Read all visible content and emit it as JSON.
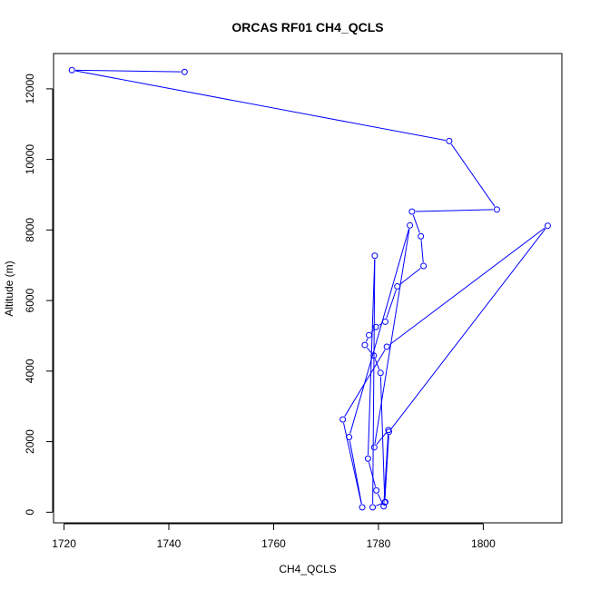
{
  "chart_data": {
    "type": "line",
    "title": "ORCAS RF01 CH4_QCLS",
    "xlabel": "CH4_QCLS",
    "ylabel": "Altitude (m)",
    "xlim": [
      1718,
      1815
    ],
    "ylim": [
      -300,
      13000
    ],
    "x_ticks": [
      1720,
      1740,
      1760,
      1780,
      1800
    ],
    "y_ticks": [
      0,
      2000,
      4000,
      6000,
      8000,
      10000,
      12000
    ],
    "grid": false,
    "legend": "none",
    "series": [
      {
        "color": "#0000ff",
        "marker": "open-circle",
        "points": [
          {
            "x": 1743.0,
            "y": 12480
          },
          {
            "x": 1721.5,
            "y": 12530
          },
          {
            "x": 1793.5,
            "y": 10520
          },
          {
            "x": 1802.6,
            "y": 8580
          },
          {
            "x": 1786.4,
            "y": 8520
          },
          {
            "x": 1788.1,
            "y": 7820
          },
          {
            "x": 1788.6,
            "y": 6980
          },
          {
            "x": 1783.6,
            "y": 6400
          },
          {
            "x": 1781.3,
            "y": 5400
          },
          {
            "x": 1779.5,
            "y": 5250
          },
          {
            "x": 1778.2,
            "y": 5020
          },
          {
            "x": 1777.4,
            "y": 4740
          },
          {
            "x": 1779.1,
            "y": 4440
          },
          {
            "x": 1780.4,
            "y": 3950
          },
          {
            "x": 1781.2,
            "y": 280
          },
          {
            "x": 1782.0,
            "y": 2280
          },
          {
            "x": 1812.3,
            "y": 8120
          },
          {
            "x": 1781.6,
            "y": 4690
          },
          {
            "x": 1773.2,
            "y": 2630
          },
          {
            "x": 1776.9,
            "y": 140
          },
          {
            "x": 1774.4,
            "y": 2130
          },
          {
            "x": 1786.0,
            "y": 8130
          },
          {
            "x": 1779.2,
            "y": 1840
          },
          {
            "x": 1781.9,
            "y": 2330
          },
          {
            "x": 1781.0,
            "y": 170
          },
          {
            "x": 1779.6,
            "y": 620
          },
          {
            "x": 1778.0,
            "y": 1520
          },
          {
            "x": 1779.3,
            "y": 7270
          },
          {
            "x": 1778.9,
            "y": 140
          },
          {
            "x": 1781.3,
            "y": 290
          }
        ]
      }
    ]
  }
}
